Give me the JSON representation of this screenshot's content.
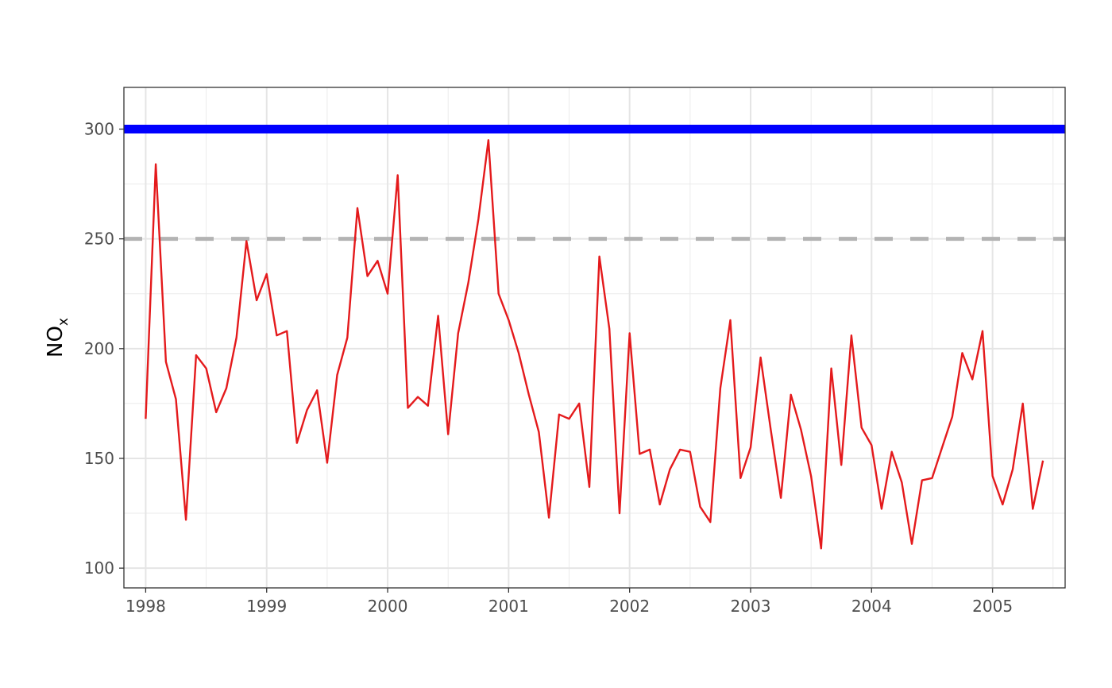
{
  "chart_data": {
    "type": "line",
    "title": "",
    "xlabel": "",
    "ylabel": "NOx",
    "ylabel_parts": {
      "main": "NO",
      "sub": "x"
    },
    "xlim": [
      1997.82,
      2005.6
    ],
    "ylim": [
      91,
      319
    ],
    "grid": true,
    "x_ticks": [
      1998,
      1999,
      2000,
      2001,
      2002,
      2003,
      2004,
      2005
    ],
    "x_tick_labels": [
      "1998",
      "1999",
      "2000",
      "2001",
      "2002",
      "2003",
      "2004",
      "2005"
    ],
    "y_ticks": [
      100,
      150,
      200,
      250,
      300
    ],
    "y_tick_labels": [
      "100",
      "150",
      "200",
      "250",
      "300"
    ],
    "reference_lines": [
      {
        "y": 300,
        "color": "#0000ff",
        "style": "solid"
      },
      {
        "y": 250,
        "color": "#b3b3b3",
        "style": "dashed"
      }
    ],
    "series": [
      {
        "color": "#e41a1c",
        "x": [
          1998.0,
          1998.083,
          1998.167,
          1998.25,
          1998.333,
          1998.417,
          1998.5,
          1998.583,
          1998.667,
          1998.75,
          1998.833,
          1998.917,
          1999.0,
          1999.083,
          1999.167,
          1999.25,
          1999.333,
          1999.417,
          1999.5,
          1999.583,
          1999.667,
          1999.75,
          1999.833,
          1999.917,
          2000.0,
          2000.083,
          2000.167,
          2000.25,
          2000.333,
          2000.417,
          2000.5,
          2000.583,
          2000.667,
          2000.75,
          2000.833,
          2000.917,
          2001.0,
          2001.083,
          2001.167,
          2001.25,
          2001.333,
          2001.417,
          2001.5,
          2001.583,
          2001.667,
          2001.75,
          2001.833,
          2001.917,
          2002.0,
          2002.083,
          2002.167,
          2002.25,
          2002.333,
          2002.417,
          2002.5,
          2002.583,
          2002.667,
          2002.75,
          2002.833,
          2002.917,
          2003.0,
          2003.083,
          2003.167,
          2003.25,
          2003.333,
          2003.417,
          2003.5,
          2003.583,
          2003.667,
          2003.75,
          2003.833,
          2003.917,
          2004.0,
          2004.083,
          2004.167,
          2004.25,
          2004.333,
          2004.417,
          2004.5,
          2004.583,
          2004.667,
          2004.75,
          2004.833,
          2004.917,
          2005.0,
          2005.083,
          2005.167,
          2005.25,
          2005.333,
          2005.417
        ],
        "values": [
          168,
          284,
          194,
          177,
          122,
          197,
          191,
          171,
          182,
          205,
          249,
          222,
          234,
          206,
          208,
          157,
          172,
          181,
          148,
          188,
          205,
          264,
          233,
          240,
          225,
          279,
          173,
          178,
          174,
          215,
          161,
          207,
          230,
          259,
          295,
          225,
          213,
          198,
          179,
          162,
          123,
          170,
          168,
          175,
          137,
          242,
          209,
          125,
          207,
          152,
          154,
          129,
          145,
          154,
          153,
          128,
          121,
          182,
          213,
          141,
          155,
          196,
          163,
          132,
          179,
          163,
          142,
          109,
          191,
          147,
          206,
          164,
          156,
          127,
          153,
          139,
          111,
          140,
          141,
          155,
          169,
          198,
          186,
          208,
          142,
          129,
          145,
          175,
          127,
          149
        ]
      }
    ]
  }
}
